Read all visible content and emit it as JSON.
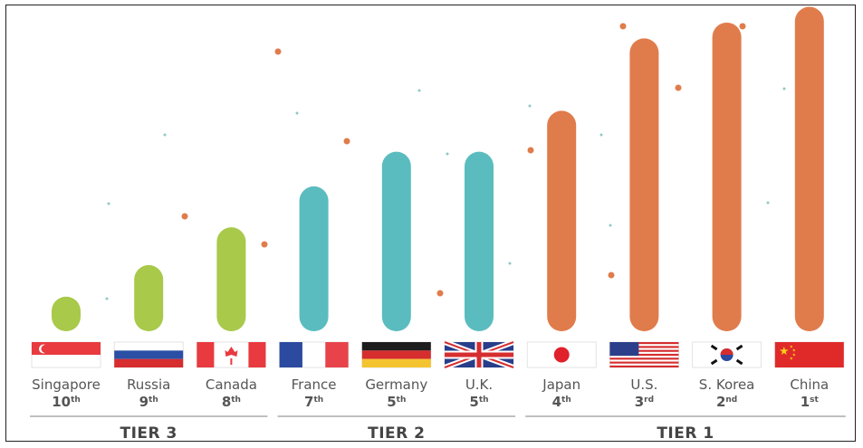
{
  "chart_data": {
    "type": "bar",
    "title": "",
    "xlabel": "",
    "ylabel": "",
    "ylim": [
      0,
      100
    ],
    "categories": [
      {
        "name": "Singapore",
        "rank_num": "10",
        "rank_suffix": "th",
        "value": 11,
        "tier": 3,
        "flag": "singapore-flag-icon"
      },
      {
        "name": "Russia",
        "rank_num": "9",
        "rank_suffix": "th",
        "value": 21,
        "tier": 3,
        "flag": "russia-flag-icon"
      },
      {
        "name": "Canada",
        "rank_num": "8",
        "rank_suffix": "th",
        "value": 33,
        "tier": 3,
        "flag": "canada-flag-icon"
      },
      {
        "name": "France",
        "rank_num": "7",
        "rank_suffix": "th",
        "value": 46,
        "tier": 2,
        "flag": "france-flag-icon"
      },
      {
        "name": "Germany",
        "rank_num": "5",
        "rank_suffix": "th",
        "value": 57,
        "tier": 2,
        "flag": "germany-flag-icon"
      },
      {
        "name": "U.K.",
        "rank_num": "5",
        "rank_suffix": "th",
        "value": 57,
        "tier": 2,
        "flag": "uk-flag-icon"
      },
      {
        "name": "Japan",
        "rank_num": "4",
        "rank_suffix": "th",
        "value": 70,
        "tier": 1,
        "flag": "japan-flag-icon"
      },
      {
        "name": "U.S.",
        "rank_num": "3",
        "rank_suffix": "rd",
        "value": 93,
        "tier": 1,
        "flag": "usa-flag-icon"
      },
      {
        "name": "S. Korea",
        "rank_num": "2",
        "rank_suffix": "nd",
        "value": 98,
        "tier": 1,
        "flag": "south-korea-flag-icon"
      },
      {
        "name": "China",
        "rank_num": "1",
        "rank_suffix": "st",
        "value": 103,
        "tier": 1,
        "flag": "china-flag-icon"
      }
    ],
    "tiers": [
      {
        "id": 3,
        "label": "TIER 3",
        "color": "#a8c94a"
      },
      {
        "id": 2,
        "label": "TIER 2",
        "color": "#5bbcbf"
      },
      {
        "id": 1,
        "label": "TIER 1",
        "color": "#e07c4c"
      }
    ],
    "grid": false,
    "legend": "none"
  }
}
